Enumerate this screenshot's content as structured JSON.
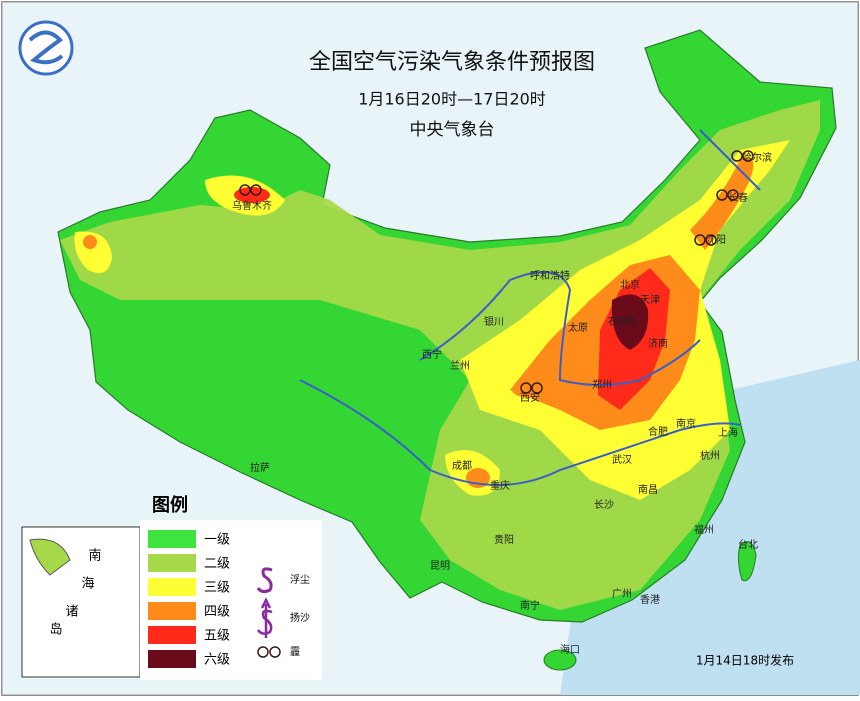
{
  "header": {
    "title": "全国空气污染气象条件预报图",
    "subtitle": "1月16日20时—17日20时",
    "agency": "中央气象台"
  },
  "legend": {
    "title": "图例",
    "levels": [
      {
        "label": "一级",
        "color": "#3ee43e"
      },
      {
        "label": "二级",
        "color": "#a6d94a"
      },
      {
        "label": "三级",
        "color": "#ffff33"
      },
      {
        "label": "四级",
        "color": "#ff8c1a"
      },
      {
        "label": "五级",
        "color": "#ff2a1a"
      },
      {
        "label": "六级",
        "color": "#6b0a1a"
      }
    ],
    "symbols": [
      {
        "label": "浮尘"
      },
      {
        "label": "扬沙"
      },
      {
        "label": "霾"
      }
    ]
  },
  "cities": [
    "哈尔滨",
    "长春",
    "沈阳",
    "乌鲁木齐",
    "呼和浩特",
    "北京",
    "天津",
    "石家庄",
    "济南",
    "太原",
    "银川",
    "西宁",
    "兰州",
    "西安",
    "郑州",
    "合肥",
    "南京",
    "上海",
    "杭州",
    "武汉",
    "南昌",
    "长沙",
    "成都",
    "重庆",
    "贵阳",
    "拉萨",
    "昆明",
    "南宁",
    "福州",
    "台北",
    "广州",
    "香港",
    "海口"
  ],
  "inset": {
    "labels": [
      "南",
      "海",
      "诸",
      "岛"
    ]
  },
  "footer": {
    "release": "1月14日18时发布"
  }
}
